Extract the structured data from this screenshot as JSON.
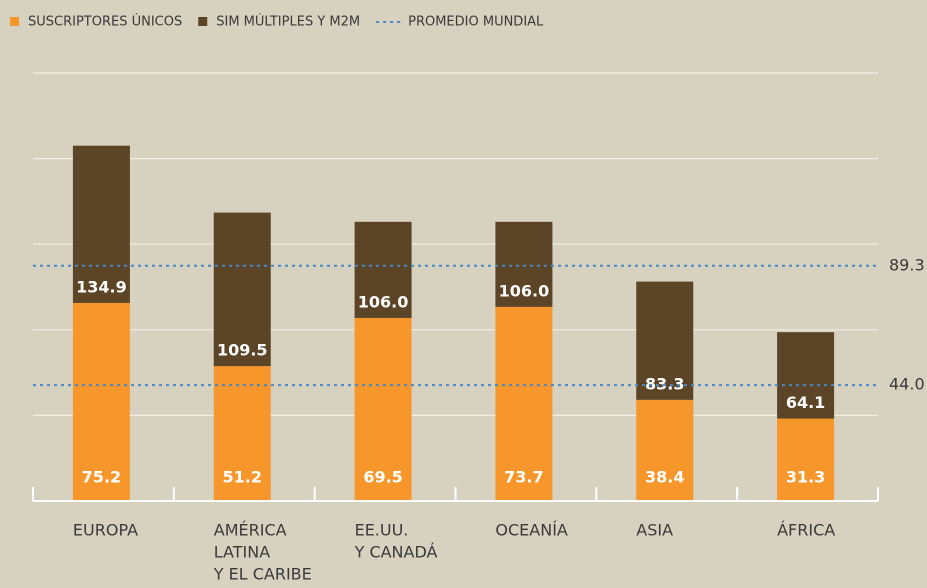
{
  "chart_data": {
    "type": "stacked_bar",
    "categories": [
      [
        "EUROPA"
      ],
      [
        "AMÉRICA",
        "LATINA",
        "Y EL CARIBE"
      ],
      [
        "EE.UU.",
        "Y CANADÁ"
      ],
      [
        "OCEANÍA"
      ],
      [
        "ASIA"
      ],
      [
        "ÁFRICA"
      ]
    ],
    "series": [
      {
        "name": "SUSCRIPTORES ÚNICOS",
        "color": "#f7962a",
        "values": [
          75.2,
          51.2,
          69.5,
          73.7,
          38.4,
          31.3
        ]
      },
      {
        "name": "SIM MÚLTIPLES Y M2M",
        "color": "#5c4427",
        "values": [
          59.7,
          58.3,
          36.5,
          32.3,
          44.9,
          32.8
        ]
      }
    ],
    "total_labels": [
      "134.9",
      "109.5",
      "106.0",
      "106.0",
      "83.3",
      "64.1"
    ],
    "reference_name": "PROMEDIO MUNDIAL",
    "reference_color": "#4a88c8",
    "reference_lines": [
      89.3,
      {
        "value": 44,
        "label": "44.0"
      }
    ],
    "ylim": [
      0,
      162.5
    ],
    "grid_values": [
      32.5,
      65,
      97.5,
      130,
      162.5
    ],
    "grid": true
  }
}
